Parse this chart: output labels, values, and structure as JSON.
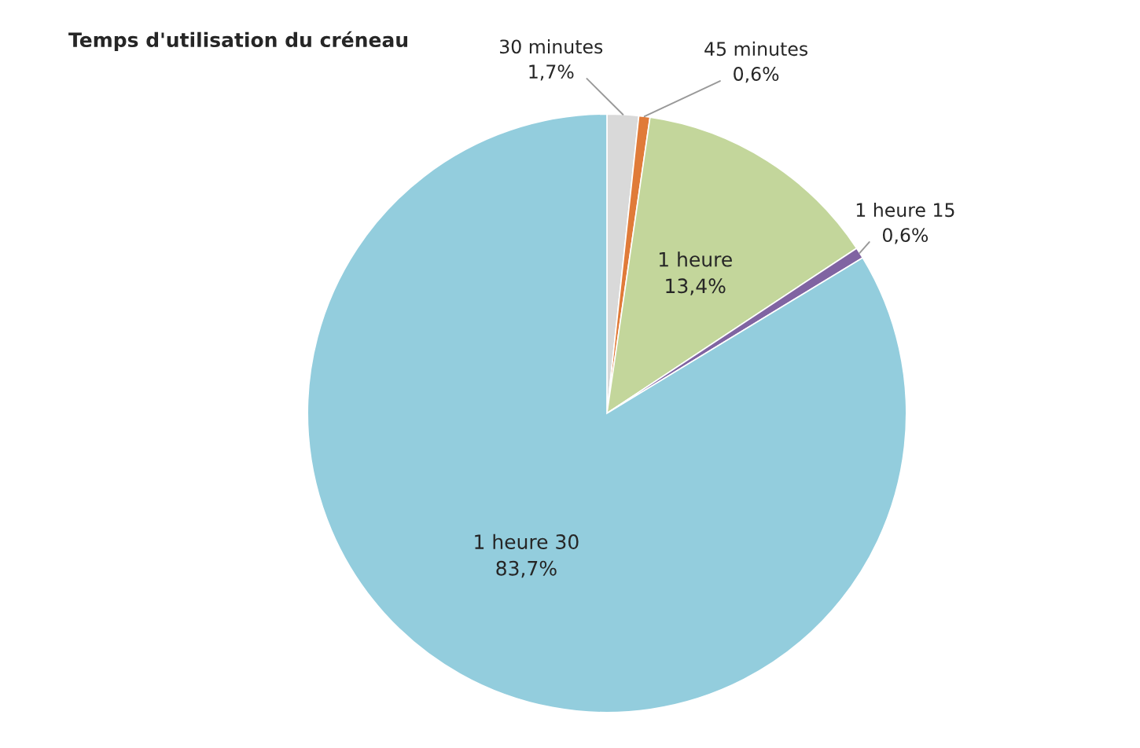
{
  "chart_data": {
    "type": "pie",
    "title": "Temps d'utilisation du créneau",
    "categories": [
      "30 minutes",
      "45 minutes",
      "1 heure",
      "1 heure 15",
      "1 heure 30"
    ],
    "values": [
      1.7,
      0.6,
      13.4,
      0.6,
      83.7
    ],
    "value_labels": [
      "1,7%",
      "0,6%",
      "13,4%",
      "0,6%",
      "83,7%"
    ],
    "colors": [
      "#d9d9d9",
      "#e07b39",
      "#c3d69b",
      "#8064a2",
      "#93cddd"
    ],
    "legend": false
  }
}
